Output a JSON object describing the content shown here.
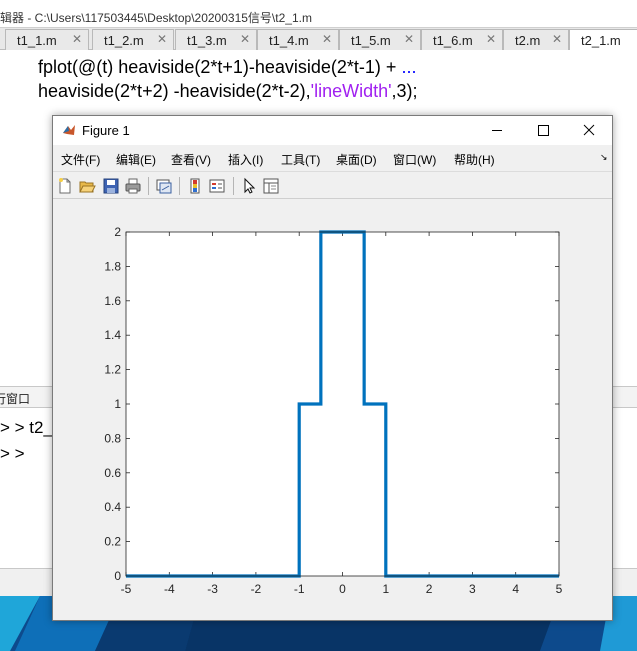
{
  "editor": {
    "title": "辑器 - C:\\Users\\117503445\\Desktop\\20200315信号\\t2_1.m",
    "tabs": [
      {
        "label": "t1_1.m"
      },
      {
        "label": "t1_2.m"
      },
      {
        "label": "t1_3.m"
      },
      {
        "label": "t1_4.m"
      },
      {
        "label": "t1_5.m"
      },
      {
        "label": "t1_6.m"
      },
      {
        "label": "t2.m"
      },
      {
        "label": "t2_1.m"
      }
    ],
    "tab_close": "✕",
    "code_line1": "fplot(@(t) heaviside(2*t+1)-heaviside(2*t-1) + ",
    "code_line1_cont": "...",
    "code_line2_a": "heaviside(2*t+2) -heaviside(2*t-2),",
    "code_line2_str": "'lineWidth'",
    "code_line2_b": ",3);"
  },
  "command_window": {
    "header": "行窗口",
    "line1": "> >  t2_",
    "line2": "> >"
  },
  "figure": {
    "title": "Figure 1",
    "menu": [
      "文件(F)",
      "编辑(E)",
      "查看(V)",
      "插入(I)",
      "工具(T)",
      "桌面(D)",
      "窗口(W)",
      "帮助(H)"
    ],
    "menu_arrow": "↘",
    "toolbar_icons": [
      "new-figure-icon",
      "open-file-icon",
      "save-icon",
      "print-icon",
      "link-plot-icon",
      "insert-colorbar-icon",
      "insert-legend-icon",
      "edit-plot-icon",
      "property-inspector-icon"
    ],
    "line_color": "#0072bd"
  },
  "chart_data": {
    "type": "line",
    "title": "",
    "xlabel": "",
    "ylabel": "",
    "xlim": [
      -5,
      5
    ],
    "ylim": [
      0,
      2
    ],
    "xticks": [
      -5,
      -4,
      -3,
      -2,
      -1,
      0,
      1,
      2,
      3,
      4,
      5
    ],
    "yticks": [
      0,
      0.2,
      0.4,
      0.6,
      0.8,
      1,
      1.2,
      1.4,
      1.6,
      1.8,
      2
    ],
    "ytick_labels": [
      "0",
      "0.2",
      "0.4",
      "0.6",
      "0.8",
      "1",
      "1.2",
      "1.4",
      "1.6",
      "1.8",
      "2"
    ],
    "grid": false,
    "series": [
      {
        "x": [
          -5,
          -1,
          -1,
          -0.5,
          -0.5,
          0.5,
          0.5,
          1,
          1,
          5
        ],
        "y": [
          0,
          0,
          1,
          1,
          2,
          2,
          1,
          1,
          0,
          0
        ],
        "color": "#0072bd"
      }
    ]
  }
}
